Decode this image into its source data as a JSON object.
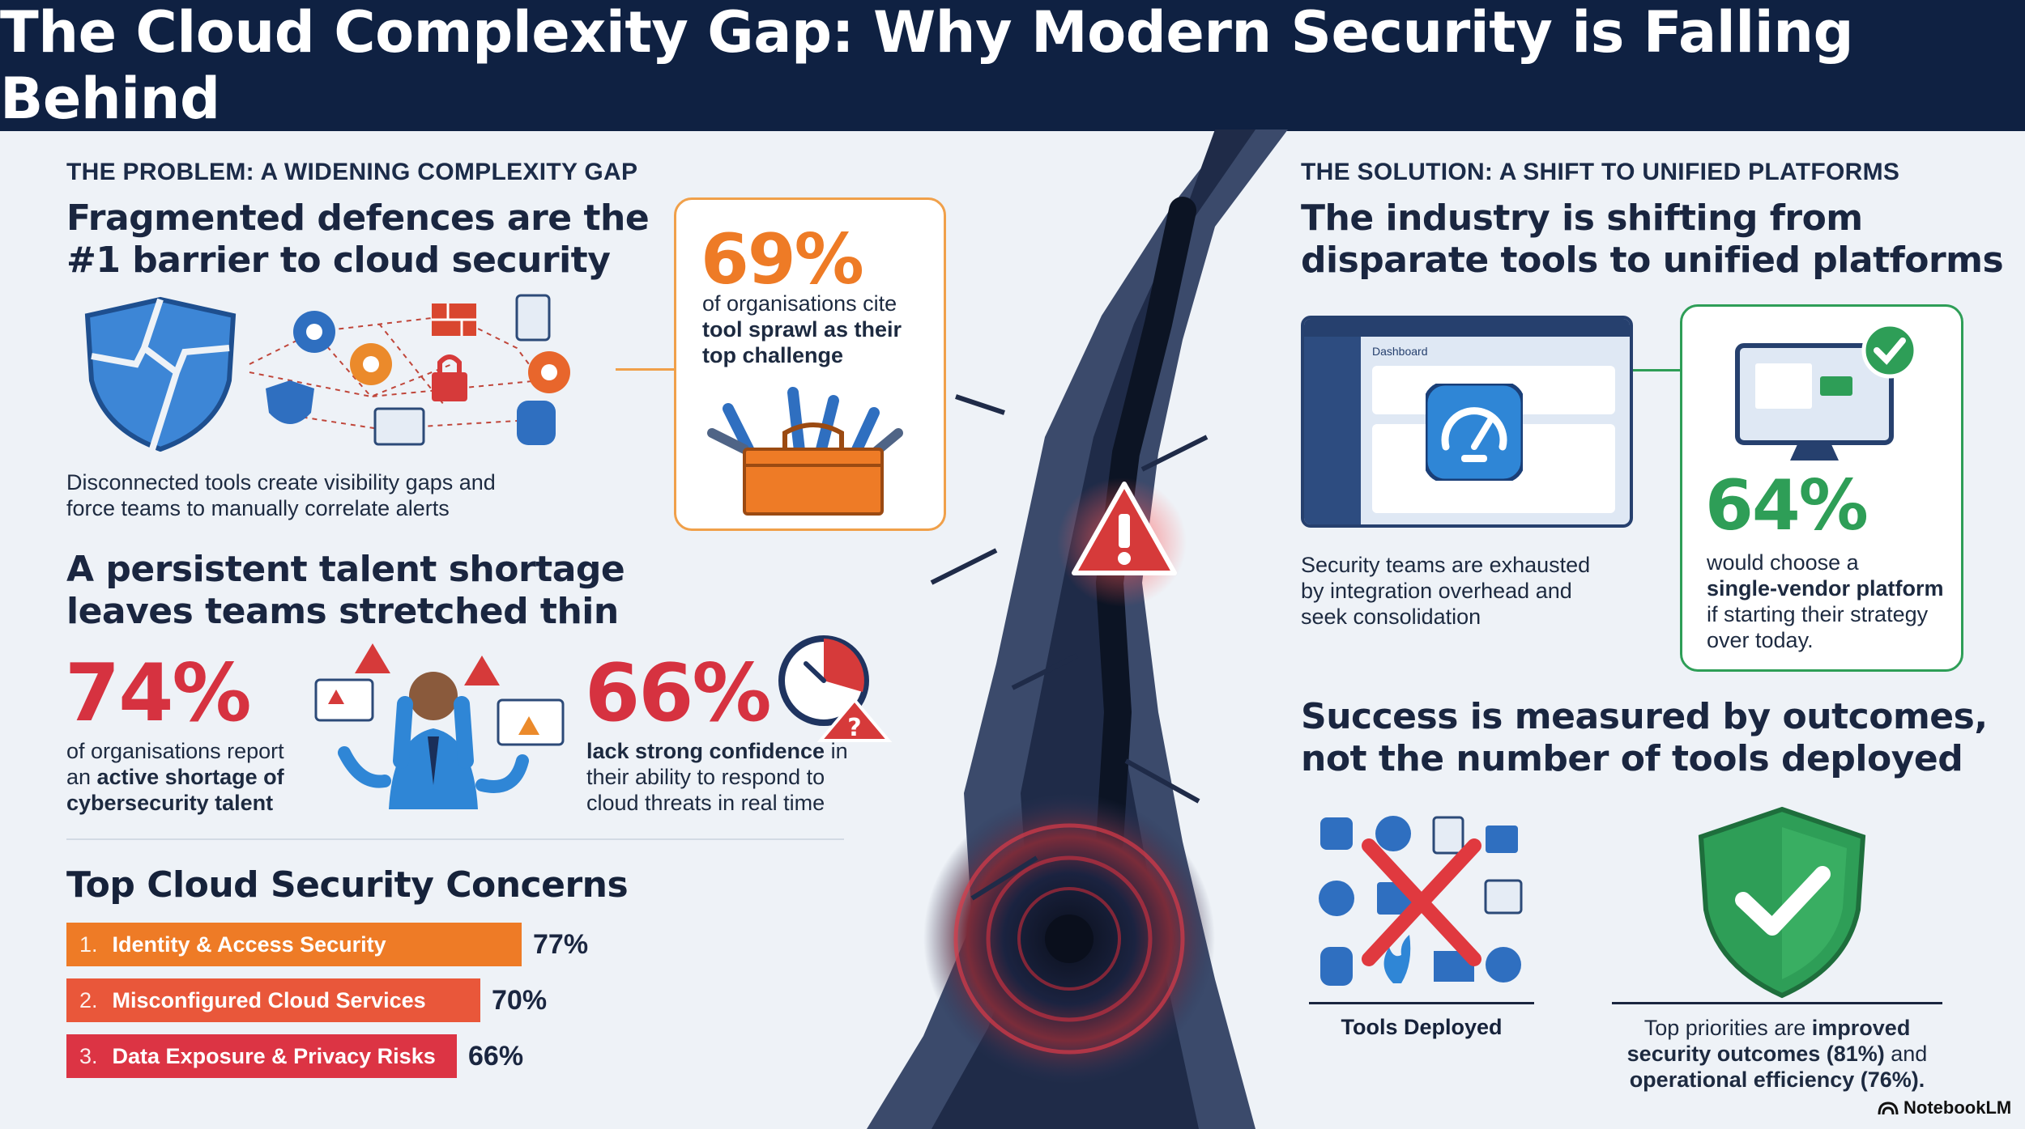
{
  "header": {
    "title": "The Cloud Complexity Gap: Why Modern Security is Falling Behind"
  },
  "problem": {
    "kicker": "THE PROBLEM: A WIDENING COMPLEXITY GAP",
    "fragmented": {
      "headline_line1": "Fragmented defences are the",
      "headline_line2": "#1 barrier to cloud security",
      "caption_line1": "Disconnected tools create visibility gaps and",
      "caption_line2": "force teams to manually correlate alerts"
    },
    "tool_sprawl_card": {
      "stat": "69%",
      "line1": "of organisations cite",
      "line2": "tool sprawl as their",
      "line3": "top challenge"
    },
    "talent": {
      "headline_line1": "A persistent talent shortage",
      "headline_line2": "leaves teams stretched thin",
      "stat_a": "74%",
      "stat_a_line1": "of organisations report",
      "stat_a_line2_pre": "an ",
      "stat_a_line2_bold": "active shortage of",
      "stat_a_line3": "cybersecurity talent",
      "stat_b": "66%",
      "stat_b_line1_bold": "lack strong confidence",
      "stat_b_line1_post": " in",
      "stat_b_line2": "their ability to respond to",
      "stat_b_line3": "cloud threats in real time"
    },
    "concerns": {
      "title": "Top Cloud Security Concerns",
      "items": [
        {
          "num": "1.",
          "label": "Identity & Access Security",
          "value": "77%",
          "pct": 77,
          "color": "#ee7b26"
        },
        {
          "num": "2.",
          "label": "Misconfigured Cloud Services",
          "value": "70%",
          "pct": 70,
          "color": "#e9573a"
        },
        {
          "num": "3.",
          "label": "Data Exposure & Privacy Risks",
          "value": "66%",
          "pct": 66,
          "color": "#dc3444"
        }
      ]
    }
  },
  "solution": {
    "kicker": "THE SOLUTION: A SHIFT TO UNIFIED PLATFORMS",
    "headline_line1": "The industry is shifting from",
    "headline_line2": "disparate tools to unified platforms",
    "dashboard_label": "Dashboard",
    "dashboard_caption_line1": "Security teams are exhausted",
    "dashboard_caption_line2": "by integration overhead and",
    "dashboard_caption_line3": "seek consolidation",
    "vendor_card": {
      "stat": "64%",
      "line1": "would choose a",
      "line2": "single-vendor platform",
      "line3": "if starting their strategy",
      "line4": "over today."
    },
    "outcomes": {
      "headline_line1": "Success is measured by outcomes,",
      "headline_line2": "not the number of tools deployed",
      "tools_label": "Tools Deployed",
      "priorities_line1_pre": "Top priorities are ",
      "priorities_line1_bold": "improved",
      "priorities_line2_bold": "security outcomes (81%)",
      "priorities_line2_post": " and",
      "priorities_line3": "operational efficiency (76%)."
    }
  },
  "footer": {
    "brand": "NotebookLM"
  },
  "colors": {
    "navy": "#0f2142",
    "orange": "#ee7b26",
    "red": "#dc3444",
    "green": "#2e9e57",
    "blue": "#2f86d6"
  }
}
